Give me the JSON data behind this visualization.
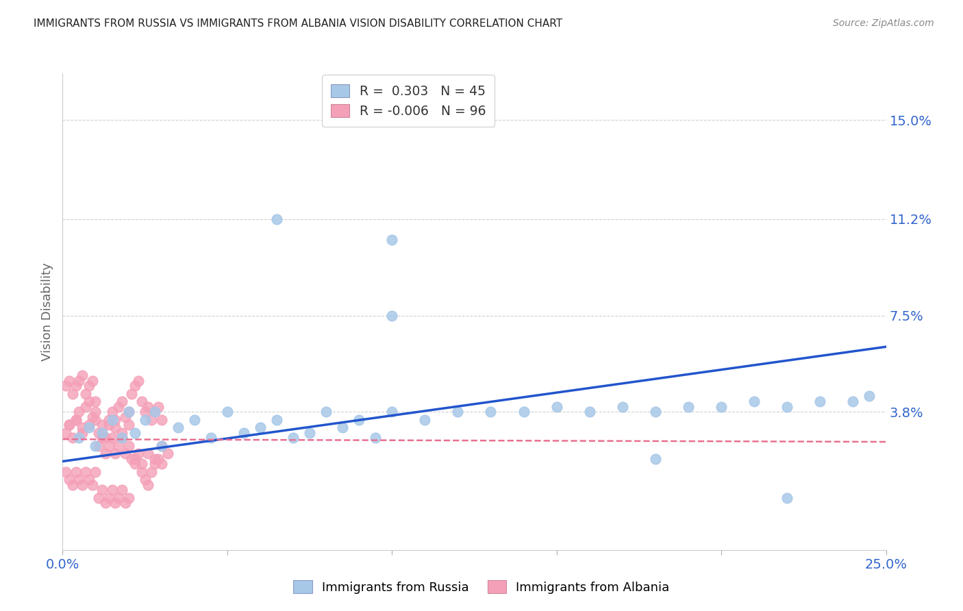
{
  "title": "IMMIGRANTS FROM RUSSIA VS IMMIGRANTS FROM ALBANIA VISION DISABILITY CORRELATION CHART",
  "source": "Source: ZipAtlas.com",
  "ylabel": "Vision Disability",
  "ytick_labels": [
    "15.0%",
    "11.2%",
    "7.5%",
    "3.8%"
  ],
  "ytick_values": [
    0.15,
    0.112,
    0.075,
    0.038
  ],
  "xmin": 0.0,
  "xmax": 0.25,
  "ymin": -0.015,
  "ymax": 0.168,
  "russia_R": 0.303,
  "russia_N": 45,
  "albania_R": -0.006,
  "albania_N": 96,
  "russia_color": "#a8c8e8",
  "albania_color": "#f4a0b8",
  "russia_line_color": "#2255cc",
  "albania_line_color": "#e87090",
  "background_color": "#ffffff",
  "grid_color": "#d0d0d0",
  "title_color": "#222222",
  "axis_label_color": "#3366cc",
  "russia_trend_x": [
    0.0,
    0.25
  ],
  "russia_trend_y": [
    0.019,
    0.063
  ],
  "albania_trend_x": [
    0.0,
    0.25
  ],
  "albania_trend_y": [
    0.0275,
    0.0265
  ],
  "russia_scatter_x": [
    0.005,
    0.008,
    0.01,
    0.012,
    0.015,
    0.018,
    0.02,
    0.022,
    0.025,
    0.028,
    0.03,
    0.035,
    0.04,
    0.045,
    0.05,
    0.055,
    0.06,
    0.065,
    0.07,
    0.075,
    0.08,
    0.085,
    0.09,
    0.095,
    0.1,
    0.11,
    0.12,
    0.13,
    0.14,
    0.15,
    0.16,
    0.17,
    0.18,
    0.19,
    0.2,
    0.21,
    0.22,
    0.23,
    0.24,
    0.245,
    0.065,
    0.1,
    0.1,
    0.22,
    0.18
  ],
  "russia_scatter_y": [
    0.028,
    0.032,
    0.025,
    0.03,
    0.035,
    0.028,
    0.038,
    0.03,
    0.035,
    0.038,
    0.025,
    0.032,
    0.035,
    0.028,
    0.038,
    0.03,
    0.032,
    0.035,
    0.028,
    0.03,
    0.038,
    0.032,
    0.035,
    0.028,
    0.038,
    0.035,
    0.038,
    0.038,
    0.038,
    0.04,
    0.038,
    0.04,
    0.038,
    0.04,
    0.04,
    0.042,
    0.04,
    0.042,
    0.042,
    0.044,
    0.112,
    0.104,
    0.075,
    0.005,
    0.02
  ],
  "albania_scatter_x": [
    0.001,
    0.002,
    0.003,
    0.004,
    0.005,
    0.006,
    0.007,
    0.008,
    0.009,
    0.01,
    0.011,
    0.012,
    0.013,
    0.014,
    0.015,
    0.016,
    0.017,
    0.018,
    0.019,
    0.02,
    0.021,
    0.022,
    0.023,
    0.024,
    0.025,
    0.026,
    0.027,
    0.028,
    0.029,
    0.03,
    0.001,
    0.002,
    0.003,
    0.004,
    0.005,
    0.006,
    0.007,
    0.008,
    0.009,
    0.01,
    0.011,
    0.012,
    0.013,
    0.014,
    0.015,
    0.016,
    0.017,
    0.018,
    0.019,
    0.02,
    0.021,
    0.022,
    0.023,
    0.024,
    0.025,
    0.026,
    0.027,
    0.028,
    0.029,
    0.03,
    0.001,
    0.002,
    0.003,
    0.004,
    0.005,
    0.006,
    0.007,
    0.008,
    0.009,
    0.01,
    0.011,
    0.012,
    0.013,
    0.014,
    0.015,
    0.016,
    0.017,
    0.018,
    0.019,
    0.02,
    0.002,
    0.004,
    0.006,
    0.008,
    0.01,
    0.012,
    0.014,
    0.016,
    0.018,
    0.02,
    0.022,
    0.024,
    0.026,
    0.028,
    0.03,
    0.032
  ],
  "albania_scatter_y": [
    0.03,
    0.033,
    0.028,
    0.035,
    0.038,
    0.032,
    0.04,
    0.042,
    0.036,
    0.038,
    0.03,
    0.033,
    0.028,
    0.035,
    0.038,
    0.032,
    0.04,
    0.042,
    0.036,
    0.038,
    0.02,
    0.018,
    0.022,
    0.015,
    0.012,
    0.01,
    0.015,
    0.018,
    0.02,
    0.025,
    0.048,
    0.05,
    0.045,
    0.048,
    0.05,
    0.052,
    0.045,
    0.048,
    0.05,
    0.042,
    0.005,
    0.008,
    0.003,
    0.005,
    0.008,
    0.003,
    0.005,
    0.008,
    0.003,
    0.005,
    0.045,
    0.048,
    0.05,
    0.042,
    0.038,
    0.04,
    0.035,
    0.038,
    0.04,
    0.035,
    0.015,
    0.012,
    0.01,
    0.015,
    0.012,
    0.01,
    0.015,
    0.012,
    0.01,
    0.015,
    0.025,
    0.028,
    0.022,
    0.025,
    0.028,
    0.022,
    0.025,
    0.028,
    0.022,
    0.025,
    0.033,
    0.035,
    0.03,
    0.033,
    0.035,
    0.03,
    0.033,
    0.035,
    0.03,
    0.033,
    0.02,
    0.018,
    0.022,
    0.02,
    0.018,
    0.022
  ]
}
